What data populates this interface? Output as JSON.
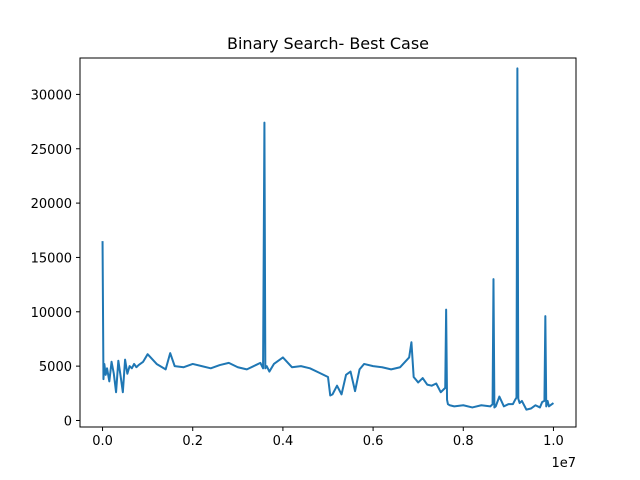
{
  "chart_data": {
    "type": "line",
    "title": "Binary Search- Best Case",
    "xlabel": "",
    "ylabel": "",
    "x_offset_label": "1e7",
    "xlim": [
      -0.05,
      1.05
    ],
    "ylim": [
      -600,
      33350
    ],
    "xticks": [
      0.0,
      0.2,
      0.4,
      0.6,
      0.8,
      1.0
    ],
    "xtick_labels": [
      "0.0",
      "0.2",
      "0.4",
      "0.6",
      "0.8",
      "1.0"
    ],
    "yticks": [
      0,
      5000,
      10000,
      15000,
      20000,
      25000,
      30000
    ],
    "ytick_labels": [
      "0",
      "5000",
      "10000",
      "15000",
      "20000",
      "25000",
      "30000"
    ],
    "grid": false,
    "line_color": "#1f77b4",
    "series": [
      {
        "x": [
          0.0,
          0.002,
          0.004,
          0.007,
          0.01,
          0.015,
          0.02,
          0.025,
          0.03,
          0.035,
          0.04,
          0.045,
          0.05,
          0.055,
          0.06,
          0.065,
          0.07,
          0.075,
          0.08,
          0.09,
          0.1,
          0.12,
          0.14,
          0.15,
          0.16,
          0.18,
          0.2,
          0.22,
          0.24,
          0.26,
          0.28,
          0.3,
          0.32,
          0.34,
          0.35,
          0.356,
          0.359,
          0.361,
          0.364,
          0.37,
          0.38,
          0.4,
          0.42,
          0.44,
          0.46,
          0.48,
          0.5,
          0.505,
          0.51,
          0.52,
          0.53,
          0.54,
          0.55,
          0.56,
          0.57,
          0.58,
          0.6,
          0.62,
          0.64,
          0.66,
          0.68,
          0.685,
          0.69,
          0.7,
          0.71,
          0.72,
          0.73,
          0.74,
          0.75,
          0.76,
          0.762,
          0.764,
          0.766,
          0.77,
          0.78,
          0.8,
          0.82,
          0.84,
          0.86,
          0.865,
          0.867,
          0.869,
          0.872,
          0.88,
          0.89,
          0.9,
          0.91,
          0.915,
          0.918,
          0.92,
          0.922,
          0.925,
          0.93,
          0.94,
          0.95,
          0.96,
          0.97,
          0.975,
          0.98,
          0.982,
          0.984,
          0.987,
          0.99,
          1.0
        ],
        "y": [
          16500,
          3800,
          5200,
          4200,
          4800,
          3600,
          5400,
          4300,
          2600,
          5500,
          4100,
          2600,
          5600,
          4300,
          5000,
          4800,
          5200,
          4900,
          5100,
          5400,
          6100,
          5200,
          4700,
          6200,
          5000,
          4900,
          5200,
          5000,
          4800,
          5100,
          5300,
          4900,
          4700,
          5100,
          5300,
          4800,
          27400,
          4800,
          5000,
          4500,
          5200,
          5800,
          4900,
          5000,
          4800,
          4400,
          4000,
          2300,
          2400,
          3200,
          2400,
          4200,
          4500,
          2700,
          4700,
          5200,
          5000,
          4900,
          4700,
          4900,
          5800,
          7200,
          4000,
          3500,
          3900,
          3300,
          3200,
          3400,
          2600,
          3000,
          10200,
          1900,
          1500,
          1400,
          1300,
          1400,
          1200,
          1400,
          1300,
          1500,
          13000,
          1200,
          1300,
          2200,
          1300,
          1500,
          1500,
          1900,
          2100,
          32400,
          2000,
          1600,
          1800,
          1000,
          1100,
          1400,
          1200,
          1700,
          1800,
          9600,
          1300,
          1800,
          1300,
          1600
        ]
      }
    ]
  }
}
